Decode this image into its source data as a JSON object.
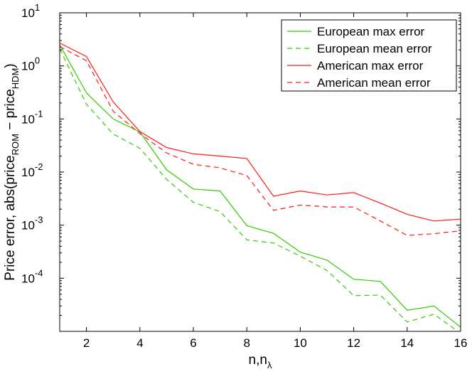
{
  "chart_data": {
    "type": "line",
    "title": "",
    "xlabel": "n,n",
    "xlabel_sub": "λ",
    "ylabel": "Price error, abs(price",
    "ylabel_sub1": "ROM",
    "ylabel_mid": " − price",
    "ylabel_sub2": "HDM",
    "ylabel_end": ")",
    "xlim": [
      1,
      16
    ],
    "ylim": [
      1e-05,
      10
    ],
    "yscale": "log",
    "grid": false,
    "legend_position": "top-right",
    "x_ticks": [
      2,
      4,
      6,
      8,
      10,
      12,
      14,
      16
    ],
    "y_ticks": [
      {
        "value": 0.0001,
        "base": "10",
        "exp": "-4"
      },
      {
        "value": 0.001,
        "base": "10",
        "exp": "-3"
      },
      {
        "value": 0.01,
        "base": "10",
        "exp": "-2"
      },
      {
        "value": 0.1,
        "base": "10",
        "exp": "-1"
      },
      {
        "value": 1,
        "base": "10",
        "exp": "0"
      },
      {
        "value": 10,
        "base": "10",
        "exp": "1"
      }
    ],
    "x": [
      1,
      2,
      3,
      4,
      5,
      6,
      7,
      8,
      9,
      10,
      11,
      12,
      13,
      14,
      15,
      16
    ],
    "series": [
      {
        "name": "European max error",
        "color": "#33cc00",
        "dash": "solid",
        "values": [
          2.5,
          0.31,
          0.1,
          0.057,
          0.011,
          0.0048,
          0.0044,
          0.00098,
          0.0007,
          0.00031,
          0.00022,
          9.6e-05,
          8.7e-05,
          2.5e-05,
          3e-05,
          1.2e-05
        ]
      },
      {
        "name": "European mean error",
        "color": "#33cc00",
        "dash": "dashed",
        "values": [
          2.1,
          0.19,
          0.052,
          0.028,
          0.0073,
          0.0027,
          0.0018,
          0.00053,
          0.00046,
          0.00026,
          0.00014,
          4.7e-05,
          4.8e-05,
          1.5e-05,
          2.1e-05,
          9.2e-06
        ]
      },
      {
        "name": "American max error",
        "color": "#ff1a1a",
        "dash": "solid",
        "values": [
          2.7,
          1.5,
          0.21,
          0.058,
          0.029,
          0.022,
          0.02,
          0.018,
          0.0035,
          0.0044,
          0.0037,
          0.0041,
          0.0026,
          0.0016,
          0.0012,
          0.0013
        ]
      },
      {
        "name": "American mean error",
        "color": "#ff1a1a",
        "dash": "dashed",
        "values": [
          2.3,
          1.25,
          0.14,
          0.053,
          0.023,
          0.014,
          0.012,
          0.0086,
          0.0019,
          0.0024,
          0.0022,
          0.0022,
          0.0012,
          0.00064,
          0.00069,
          0.00078
        ]
      }
    ]
  }
}
